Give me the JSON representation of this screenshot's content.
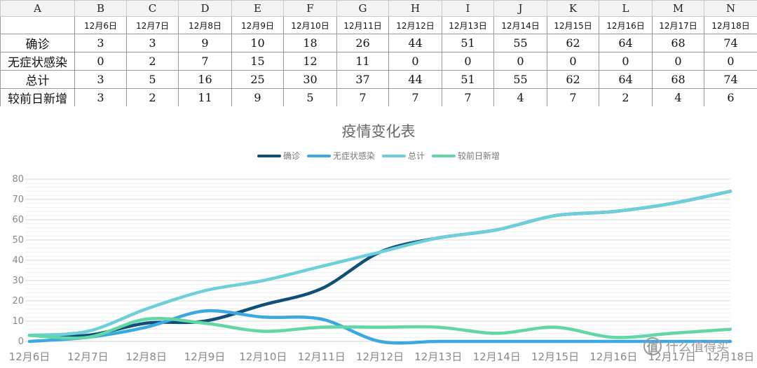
{
  "sheet": {
    "columns": [
      "A",
      "B",
      "C",
      "D",
      "E",
      "F",
      "G",
      "H",
      "I",
      "J",
      "K",
      "L",
      "M",
      "N"
    ],
    "dates": [
      "12月6日",
      "12月7日",
      "12月8日",
      "12月9日",
      "12月10日",
      "12月11日",
      "12月12日",
      "12月13日",
      "12月14日",
      "12月15日",
      "12月16日",
      "12月17日",
      "12月18日"
    ],
    "rows": [
      {
        "label": "确诊",
        "values": [
          "3",
          "3",
          "9",
          "10",
          "18",
          "26",
          "44",
          "51",
          "55",
          "62",
          "64",
          "68",
          "74"
        ]
      },
      {
        "label": "无症状感染",
        "values": [
          "0",
          "2",
          "7",
          "15",
          "12",
          "11",
          "0",
          "0",
          "0",
          "0",
          "0",
          "0",
          "0"
        ]
      },
      {
        "label": "总计",
        "values": [
          "3",
          "5",
          "16",
          "25",
          "30",
          "37",
          "44",
          "51",
          "55",
          "62",
          "64",
          "68",
          "74"
        ]
      },
      {
        "label": "较前日新增",
        "values": [
          "3",
          "2",
          "11",
          "9",
          "5",
          "7",
          "7",
          "7",
          "4",
          "7",
          "2",
          "4",
          "6"
        ]
      }
    ]
  },
  "chart_data": {
    "type": "line",
    "title": "疫情变化表",
    "categories": [
      "12月6日",
      "12月7日",
      "12月8日",
      "12月9日",
      "12月10日",
      "12月11日",
      "12月12日",
      "12月13日",
      "12月14日",
      "12月15日",
      "12月16日",
      "12月17日",
      "12月18日"
    ],
    "series": [
      {
        "name": "确诊",
        "color": "#0f4f78",
        "values": [
          3,
          3,
          9,
          10,
          18,
          26,
          44,
          51,
          55,
          62,
          64,
          68,
          74
        ]
      },
      {
        "name": "无症状感染",
        "color": "#3ba8e0",
        "values": [
          0,
          2,
          7,
          15,
          12,
          11,
          0,
          0,
          0,
          0,
          0,
          0,
          0
        ]
      },
      {
        "name": "总计",
        "color": "#6ccfd9",
        "values": [
          3,
          5,
          16,
          25,
          30,
          37,
          44,
          51,
          55,
          62,
          64,
          68,
          74
        ]
      },
      {
        "name": "较前日新增",
        "color": "#62d6a4",
        "values": [
          3,
          2,
          11,
          9,
          5,
          7,
          7,
          7,
          4,
          7,
          2,
          4,
          6
        ]
      }
    ],
    "yticks": [
      "0",
      "10",
      "20",
      "30",
      "40",
      "50",
      "60",
      "70",
      "80"
    ],
    "ylim": [
      0,
      80
    ],
    "smooth": true,
    "grid": true,
    "legend_position": "top-center"
  },
  "watermark": {
    "icon_text": "值",
    "text": "什么值得买"
  }
}
